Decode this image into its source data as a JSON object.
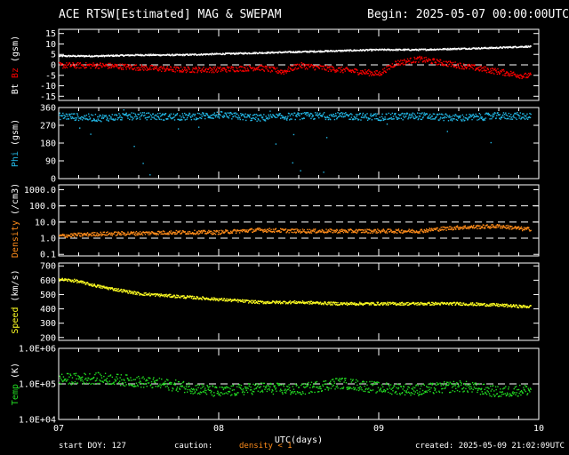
{
  "header": {
    "title": "ACE RTSW[Estimated] MAG & SWEPAM",
    "begin": "Begin: 2025-05-07 00:00:00UTC"
  },
  "footer": {
    "start": "start DOY: 127",
    "caution": "caution:",
    "density_note": "density < 1",
    "created": "created: 2025-05-09 21:02:09UTC"
  },
  "colors": {
    "bt": "#ffffff",
    "bz": "#ff0000",
    "phi": "#22b8e6",
    "density": "#ff8c1a",
    "speed": "#ffff22",
    "temp": "#22dd22",
    "frame": "#ffffff",
    "background": "#000000"
  },
  "chart_data": {
    "type": "scatter",
    "x_axis": {
      "label": "UTC(days)",
      "range_days": [
        7,
        10
      ],
      "ticks": [
        "07",
        "08",
        "09",
        "10"
      ]
    },
    "panels": [
      {
        "id": "mag",
        "ylabel_parts": [
          "Bt",
          "Bz",
          "(gsm)"
        ],
        "ylim": [
          -17,
          17
        ],
        "tick_labels": [
          "15",
          "10",
          "5",
          "0",
          "-5",
          "-10",
          "-15"
        ],
        "tick_values": [
          15,
          10,
          5,
          0,
          -5,
          -10,
          -15
        ],
        "dashed_lines": [
          0
        ],
        "series": [
          {
            "name": "Bt",
            "color": "#ffffff",
            "x": [
              7.0,
              7.25,
              7.5,
              7.75,
              8.0,
              8.25,
              8.5,
              8.75,
              9.0,
              9.25,
              9.5,
              9.75,
              9.9
            ],
            "y": [
              4.5,
              4.5,
              5,
              5,
              5.5,
              6,
              6.5,
              7,
              7.5,
              7.5,
              8,
              8.5,
              9
            ]
          },
          {
            "name": "Bz",
            "color": "#ff0000",
            "x": [
              7.0,
              7.25,
              7.5,
              7.75,
              8.0,
              8.25,
              8.4,
              8.5,
              8.75,
              9.0,
              9.1,
              9.25,
              9.5,
              9.75,
              9.9
            ],
            "y": [
              0,
              0,
              -1,
              -2,
              -2,
              -1,
              -3,
              0,
              -2,
              -4,
              1,
              3,
              0,
              -3,
              -5
            ]
          }
        ]
      },
      {
        "id": "phi",
        "ylabel_parts": [
          "Phi",
          "(gsm)"
        ],
        "ylim": [
          0,
          360
        ],
        "tick_labels": [
          "360",
          "270",
          "180",
          "90",
          "0"
        ],
        "tick_values": [
          360,
          270,
          180,
          90,
          0
        ],
        "dashed_lines": [],
        "series": [
          {
            "name": "Phi",
            "color": "#22b8e6",
            "x": [
              7.0,
              7.25,
              7.5,
              7.75,
              8.0,
              8.25,
              8.5,
              8.75,
              9.0,
              9.25,
              9.5,
              9.75,
              9.9
            ],
            "y": [
              320,
              310,
              320,
              315,
              325,
              310,
              320,
              320,
              315,
              320,
              310,
              320,
              320
            ]
          }
        ]
      },
      {
        "id": "density",
        "ylabel_parts": [
          "Density",
          "(/cm3)"
        ],
        "scale": "log",
        "ylim": [
          0.08,
          2000
        ],
        "tick_labels": [
          "1000.0",
          "100.0",
          "10.0",
          "1.0",
          "0.1"
        ],
        "tick_values": [
          1000,
          100,
          10,
          1,
          0.1
        ],
        "dashed_lines": [
          1,
          10,
          100
        ],
        "series": [
          {
            "name": "Density",
            "color": "#ff8c1a",
            "x": [
              7.0,
              7.25,
              7.5,
              7.75,
              8.0,
              8.25,
              8.5,
              8.75,
              9.0,
              9.25,
              9.5,
              9.75,
              9.9
            ],
            "y": [
              1.5,
              2,
              2.2,
              2.5,
              2.5,
              3.5,
              3,
              3,
              3,
              3,
              5,
              6,
              4
            ]
          }
        ]
      },
      {
        "id": "speed",
        "ylabel_parts": [
          "Speed",
          "(km/s)"
        ],
        "ylim": [
          180,
          720
        ],
        "tick_labels": [
          "700",
          "600",
          "500",
          "400",
          "300",
          "200"
        ],
        "tick_values": [
          700,
          600,
          500,
          400,
          300,
          200
        ],
        "dashed_lines": [],
        "series": [
          {
            "name": "Speed",
            "color": "#ffff22",
            "x": [
              7.0,
              7.1,
              7.25,
              7.5,
              7.75,
              8.0,
              8.25,
              8.5,
              8.75,
              9.0,
              9.25,
              9.5,
              9.75,
              9.9
            ],
            "y": [
              610,
              600,
              560,
              510,
              490,
              470,
              450,
              450,
              440,
              440,
              440,
              440,
              430,
              420
            ]
          }
        ]
      },
      {
        "id": "temp",
        "ylabel_parts": [
          "Temp",
          "(K)"
        ],
        "scale": "log",
        "ylim": [
          10000,
          1000000
        ],
        "tick_labels": [
          "1.0E+06",
          "1.0E+05",
          "1.0E+04"
        ],
        "tick_values": [
          1000000,
          100000,
          10000
        ],
        "dashed_lines": [
          100000
        ],
        "series": [
          {
            "name": "Temp",
            "color": "#22dd22",
            "x": [
              7.0,
              7.25,
              7.5,
              7.75,
              8.0,
              8.25,
              8.5,
              8.75,
              9.0,
              9.25,
              9.5,
              9.75,
              9.9
            ],
            "y": [
              140000,
              150000,
              120000,
              90000,
              60000,
              80000,
              70000,
              110000,
              80000,
              70000,
              90000,
              60000,
              70000
            ]
          }
        ]
      }
    ]
  }
}
